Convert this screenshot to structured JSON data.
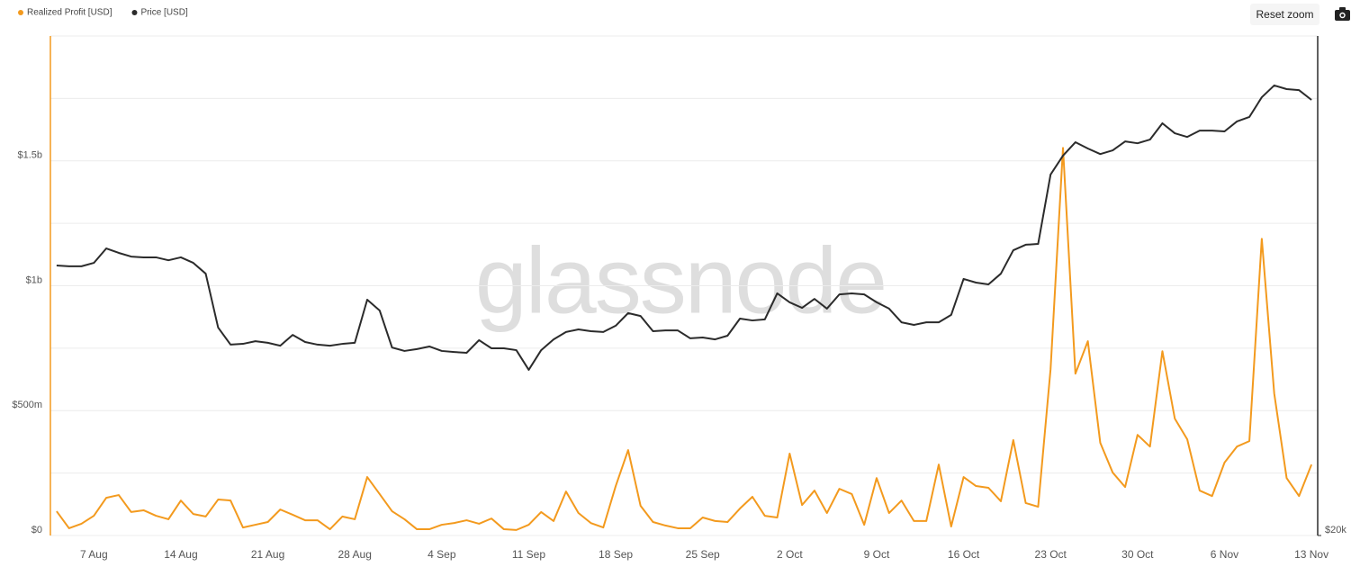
{
  "chart_data": {
    "type": "line",
    "watermark": "glassnode",
    "categories": [
      null,
      null,
      null,
      "7 Aug",
      null,
      null,
      null,
      null,
      null,
      null,
      "14 Aug",
      null,
      null,
      null,
      null,
      null,
      null,
      "21 Aug",
      null,
      null,
      null,
      null,
      null,
      null,
      "28 Aug",
      null,
      null,
      null,
      null,
      null,
      null,
      "4 Sep",
      null,
      null,
      null,
      null,
      null,
      null,
      "11 Sep",
      null,
      null,
      null,
      null,
      null,
      null,
      "18 Sep",
      null,
      null,
      null,
      null,
      null,
      null,
      "25 Sep",
      null,
      null,
      null,
      null,
      null,
      null,
      "2 Oct",
      null,
      null,
      null,
      null,
      null,
      null,
      "9 Oct",
      null,
      null,
      null,
      null,
      null,
      null,
      "16 Oct",
      null,
      null,
      null,
      null,
      null,
      null,
      "23 Oct",
      null,
      null,
      null,
      null,
      null,
      null,
      "30 Oct",
      null,
      null,
      null,
      null,
      null,
      null,
      "6 Nov",
      null,
      null,
      null,
      null,
      null,
      null,
      "13 Nov"
    ],
    "series": [
      {
        "name": "Realized Profit [USD]",
        "color": "#f39a1e",
        "values": [
          97000000,
          29000000,
          47000000,
          79000000,
          151000000,
          162000000,
          94000000,
          101000000,
          79000000,
          65000000,
          140000000,
          86000000,
          76000000,
          144000000,
          140000000,
          32000000,
          43000000,
          54000000,
          104000000,
          83000000,
          61000000,
          61000000,
          25000000,
          76000000,
          65000000,
          234000000,
          166000000,
          97000000,
          65000000,
          25000000,
          25000000,
          43000000,
          50000000,
          61000000,
          47000000,
          68000000,
          25000000,
          22000000,
          43000000,
          94000000,
          58000000,
          176000000,
          90000000,
          50000000,
          32000000,
          198000000,
          342000000,
          119000000,
          54000000,
          40000000,
          29000000,
          29000000,
          72000000,
          58000000,
          54000000,
          108000000,
          155000000,
          79000000,
          72000000,
          328000000,
          122000000,
          180000000,
          90000000,
          187000000,
          166000000,
          43000000,
          230000000,
          90000000,
          140000000,
          58000000,
          58000000,
          284000000,
          36000000,
          234000000,
          198000000,
          191000000,
          137000000,
          382000000,
          130000000,
          115000000,
          666000000,
          1552000000,
          648000000,
          778000000,
          371000000,
          252000000,
          194000000,
          403000000,
          356000000,
          738000000,
          468000000,
          385000000,
          180000000,
          158000000,
          292000000,
          356000000,
          378000000,
          1188000000,
          569000000,
          230000000,
          158000000,
          284000000
        ]
      },
      {
        "name": "Price [USD]",
        "color": "#2b2b2b",
        "axis": "y2",
        "values": [
          30270,
          30240,
          30240,
          30370,
          30920,
          30750,
          30610,
          30580,
          30580,
          30470,
          30580,
          30370,
          29960,
          27910,
          27260,
          27290,
          27390,
          27330,
          27220,
          27630,
          27360,
          27260,
          27220,
          27290,
          27330,
          28970,
          28560,
          27150,
          27020,
          27090,
          27190,
          27020,
          26980,
          26950,
          27430,
          27120,
          27120,
          27050,
          26300,
          27050,
          27460,
          27740,
          27840,
          27770,
          27740,
          27980,
          28460,
          28350,
          27770,
          27800,
          27800,
          27500,
          27530,
          27460,
          27600,
          28250,
          28180,
          28220,
          29210,
          28870,
          28660,
          29000,
          28630,
          29170,
          29210,
          29170,
          28870,
          28630,
          28110,
          28010,
          28110,
          28110,
          28390,
          29760,
          29620,
          29550,
          29960,
          30850,
          31060,
          31090,
          33730,
          34450,
          34960,
          34720,
          34510,
          34650,
          34990,
          34920,
          35060,
          35680,
          35300,
          35160,
          35400,
          35400,
          35370,
          35750,
          35920,
          36670,
          37120,
          36980,
          36940,
          36570
        ]
      }
    ],
    "ylim": [
      0,
      2000000000
    ],
    "yticks": [
      {
        "value": 0,
        "label": "$0"
      },
      {
        "value": 250000000,
        "label": null
      },
      {
        "value": 500000000,
        "label": "$500m"
      },
      {
        "value": 750000000,
        "label": null
      },
      {
        "value": 1000000000,
        "label": "$1b"
      },
      {
        "value": 1250000000,
        "label": null
      },
      {
        "value": 1500000000,
        "label": "$1.5b"
      },
      {
        "value": 1750000000,
        "label": null
      },
      {
        "value": 2000000000,
        "label": null
      }
    ],
    "y2lim": [
      20000,
      39000
    ],
    "y2ticks": [
      {
        "value": 20000,
        "label": "$20k"
      }
    ],
    "grid": true
  },
  "ui": {
    "reset_zoom": "Reset zoom"
  }
}
